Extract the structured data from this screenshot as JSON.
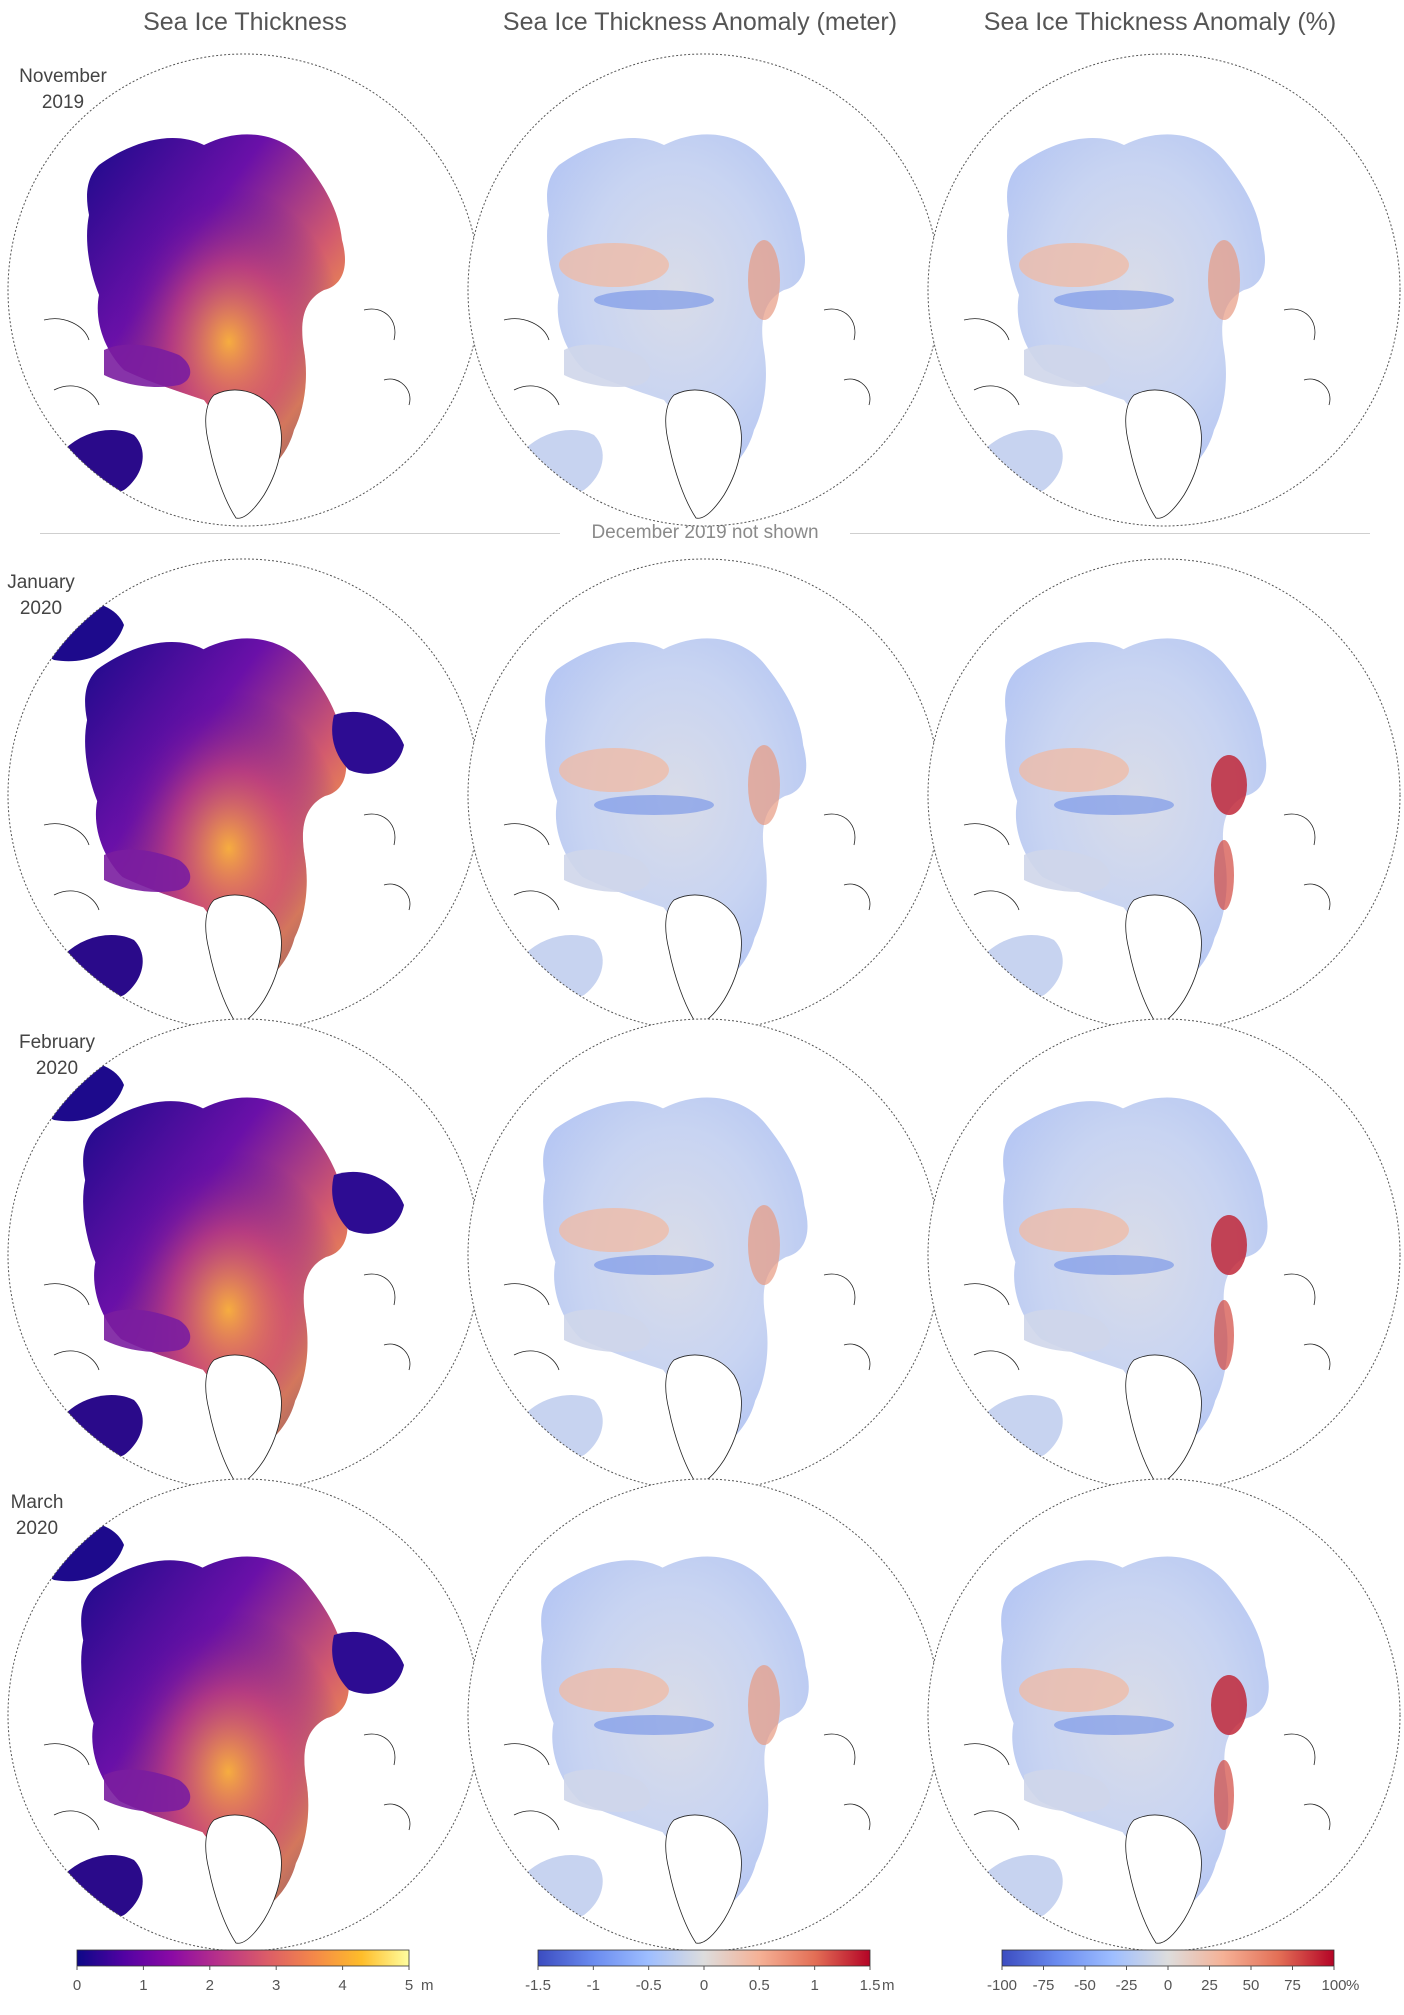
{
  "column_titles": [
    "Sea Ice Thickness",
    "Sea Ice Thickness Anomaly (meter)",
    "Sea Ice Thickness Anomaly (%)"
  ],
  "rows": [
    {
      "month": "November",
      "year": "2019"
    },
    {
      "month": "January",
      "year": "2020"
    },
    {
      "month": "February",
      "year": "2020"
    },
    {
      "month": "March",
      "year": "2020"
    }
  ],
  "separator_note": "December 2019 not shown",
  "colorbars": [
    {
      "name": "thickness",
      "ticks": [
        "0",
        "1",
        "2",
        "3",
        "4",
        "5"
      ],
      "unit": "m",
      "colors": [
        "#0d0887",
        "#5302a3",
        "#8b0aa5",
        "#b83289",
        "#db5c68",
        "#f48849",
        "#febd2a",
        "#fefea0"
      ]
    },
    {
      "name": "anomaly-meter",
      "ticks": [
        "-1.5",
        "-1",
        "-0.5",
        "0",
        "0.5",
        "1",
        "1.5"
      ],
      "unit": "m",
      "colors": [
        "#3b4cc0",
        "#6a8bef",
        "#9ebeff",
        "#dddddd",
        "#f5b196",
        "#e36f56",
        "#b40426"
      ]
    },
    {
      "name": "anomaly-percent",
      "ticks": [
        "-100",
        "-75",
        "-50",
        "-25",
        "0",
        "25",
        "50",
        "75",
        "100"
      ],
      "unit": "%",
      "colors": [
        "#3b4cc0",
        "#6a8bef",
        "#9ebeff",
        "#dddddd",
        "#f5b196",
        "#e36f56",
        "#b40426"
      ]
    }
  ]
}
